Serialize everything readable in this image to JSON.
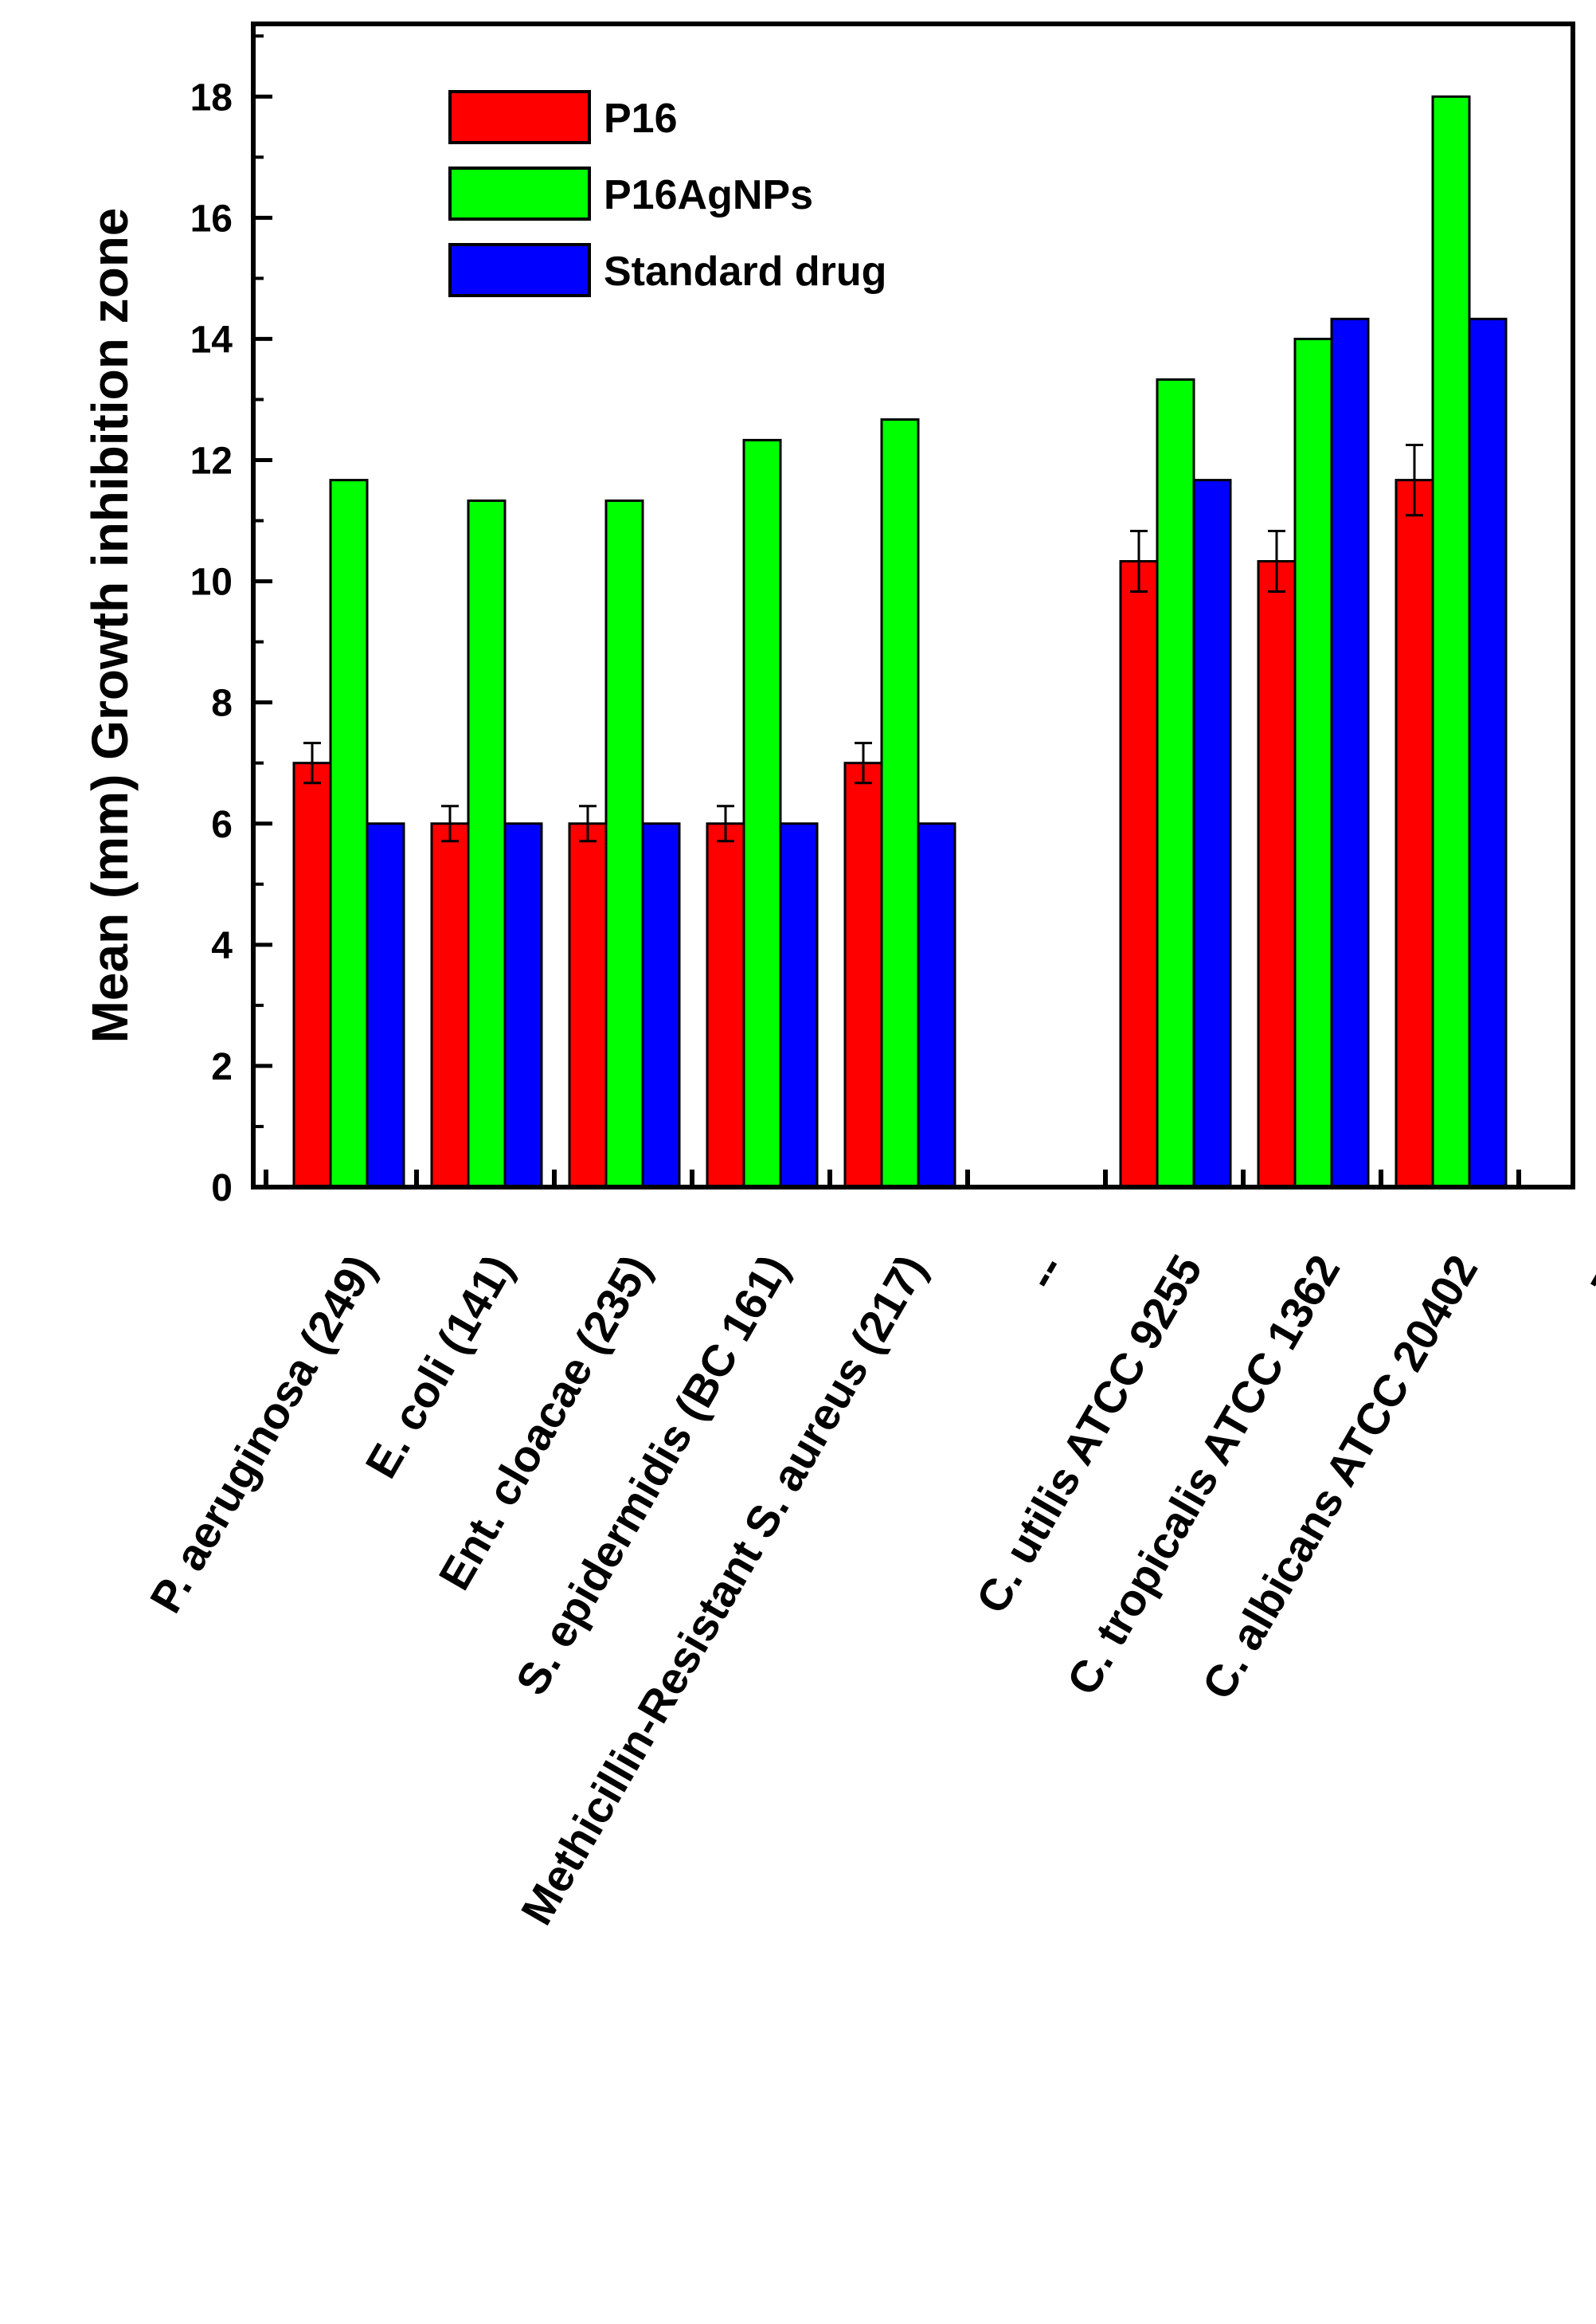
{
  "chart_data": {
    "type": "bar",
    "title": "",
    "xlabel": "",
    "ylabel": "Mean (mm) Growth inhibition zone",
    "ylim": [
      0,
      19.2
    ],
    "y_ticks": [
      {
        "value": 0,
        "label": "0"
      },
      {
        "value": 2,
        "label": "2"
      },
      {
        "value": 4,
        "label": "4"
      },
      {
        "value": 6,
        "label": "6"
      },
      {
        "value": 8,
        "label": "8"
      },
      {
        "value": 10,
        "label": "10"
      },
      {
        "value": 12,
        "label": "12"
      },
      {
        "value": 14,
        "label": "14"
      },
      {
        "value": 16,
        "label": "16"
      },
      {
        "value": 18,
        "label": "18"
      }
    ],
    "categories": [
      "P. aeruginosa (249)",
      "E. coli (141)",
      "Ent. cloacae  (235)",
      "S. epidermidis (BC 161)",
      "Methicillin-Resistant S. aureus (217)",
      "--",
      "C. utilis ATCC  9255",
      "C. tropicalis ATCC  1362",
      "C. albicans ATCC 20402",
      "--"
    ],
    "series": [
      {
        "name": "P16",
        "color": "#ff0000",
        "values": [
          7,
          6,
          6,
          6,
          7,
          null,
          10.33,
          10.33,
          11.67,
          null
        ],
        "errors": [
          0.33,
          0.29,
          0.29,
          0.29,
          0.33,
          null,
          0.5,
          0.5,
          0.58,
          null
        ]
      },
      {
        "name": "P16AgNPs",
        "color": "#00ff00",
        "values": [
          11.67,
          11.33,
          11.33,
          12.33,
          12.67,
          null,
          13.33,
          14,
          18,
          null
        ]
      },
      {
        "name": "Standard drug",
        "color": "#0000ff",
        "values": [
          6,
          6,
          6,
          6,
          6,
          null,
          11.67,
          14.33,
          14.33,
          null
        ]
      }
    ],
    "legend_position": "top-left",
    "grid": false
  }
}
